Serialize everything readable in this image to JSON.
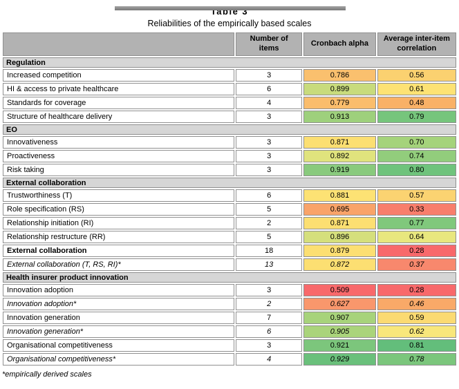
{
  "page": {
    "title": "Table 3",
    "subtitle": "Reliabilities of the empirically based scales",
    "footnote": "*empirically derived scales"
  },
  "colors": {
    "header_bg": "#b2b2b2",
    "section_bg": "#d6d6d6",
    "cell_border": "#8f8f8f",
    "top_bar": "#8c8c8c"
  },
  "table": {
    "columns": [
      "",
      "Number of items",
      "Cronbach alpha",
      "Average inter-item correlation"
    ],
    "sections": [
      {
        "label": "Regulation",
        "rows": [
          {
            "label": "Increased competition",
            "style": "normal",
            "items": "3",
            "alpha": "0.786",
            "alpha_bg": "#FAC06E",
            "corr": "0.56",
            "corr_bg": "#FBD170"
          },
          {
            "label": "HI & access to private healthcare",
            "style": "normal",
            "items": "6",
            "alpha": "0.899",
            "alpha_bg": "#C8DB7C",
            "corr": "0.61",
            "corr_bg": "#FDE274"
          },
          {
            "label": "Standards for coverage",
            "style": "normal",
            "items": "4",
            "alpha": "0.779",
            "alpha_bg": "#FABD6C",
            "corr": "0.48",
            "corr_bg": "#F9B166"
          },
          {
            "label": "Structure of healthcare delivery",
            "style": "normal",
            "items": "3",
            "alpha": "0.913",
            "alpha_bg": "#9ED07C",
            "corr": "0.79",
            "corr_bg": "#76C57C"
          }
        ]
      },
      {
        "label": "EO",
        "rows": [
          {
            "label": "Innovativeness",
            "style": "normal",
            "items": "3",
            "alpha": "0.871",
            "alpha_bg": "#FCDF72",
            "corr": "0.70",
            "corr_bg": "#A5D37B"
          },
          {
            "label": "Proactiveness",
            "style": "normal",
            "items": "3",
            "alpha": "0.892",
            "alpha_bg": "#E0E37D",
            "corr": "0.74",
            "corr_bg": "#92CD7C"
          },
          {
            "label": "Risk taking",
            "style": "normal",
            "items": "3",
            "alpha": "0.919",
            "alpha_bg": "#89CA7D",
            "corr": "0.80",
            "corr_bg": "#6FC37C"
          }
        ]
      },
      {
        "label": "External collaboration",
        "rows": [
          {
            "label": "Trustworthiness (T)",
            "style": "normal",
            "items": "6",
            "alpha": "0.881",
            "alpha_bg": "#FDE274",
            "corr": "0.57",
            "corr_bg": "#FBD371"
          },
          {
            "label": "Role specification (RS)",
            "style": "normal",
            "items": "5",
            "alpha": "0.695",
            "alpha_bg": "#F9A369",
            "corr": "0.33",
            "corr_bg": "#F87E6C"
          },
          {
            "label": "Relationship initiation (RI)",
            "style": "normal",
            "items": "2",
            "alpha": "0.871",
            "alpha_bg": "#FCDF72",
            "corr": "0.77",
            "corr_bg": "#80C87C"
          },
          {
            "label": "Relationship restructure (RR)",
            "style": "normal",
            "items": "5",
            "alpha": "0.896",
            "alpha_bg": "#D5DF7C",
            "corr": "0.64",
            "corr_bg": "#E8E77E"
          },
          {
            "label": "External collaboration",
            "style": "bold",
            "items": "18",
            "alpha": "0.879",
            "alpha_bg": "#FCDF72",
            "corr": "0.28",
            "corr_bg": "#F8696B"
          },
          {
            "label": "External collaboration (T, RS, RI)*",
            "style": "italic",
            "items": "13",
            "alpha": "0.872",
            "alpha_bg": "#FCDF72",
            "corr": "0.37",
            "corr_bg": "#F8886D"
          }
        ]
      },
      {
        "label": "Health insurer product innovation",
        "rows": [
          {
            "label": "Innovation adoption",
            "style": "normal",
            "items": "3",
            "alpha": "0.509",
            "alpha_bg": "#F8696B",
            "corr": "0.28",
            "corr_bg": "#F8696B"
          },
          {
            "label": "Innovation adoption*",
            "style": "italic",
            "items": "2",
            "alpha": "0.627",
            "alpha_bg": "#F9976C",
            "corr": "0.46",
            "corr_bg": "#F9A968"
          },
          {
            "label": "Innovation generation",
            "style": "normal",
            "items": "7",
            "alpha": "0.907",
            "alpha_bg": "#A7D37B",
            "corr": "0.59",
            "corr_bg": "#FBDA72"
          },
          {
            "label": "Innovation generation*",
            "style": "italic",
            "items": "6",
            "alpha": "0.905",
            "alpha_bg": "#AAD47B",
            "corr": "0.62",
            "corr_bg": "#F8E77B"
          },
          {
            "label": "Organisational competitiveness",
            "style": "normal",
            "items": "3",
            "alpha": "0.921",
            "alpha_bg": "#7CC67C",
            "corr": "0.81",
            "corr_bg": "#63BE7B"
          },
          {
            "label": "Organisational competitiveness*",
            "style": "italic",
            "items": "4",
            "alpha": "0.929",
            "alpha_bg": "#6AC07B",
            "corr": "0.78",
            "corr_bg": "#7BC67C"
          }
        ]
      }
    ]
  }
}
